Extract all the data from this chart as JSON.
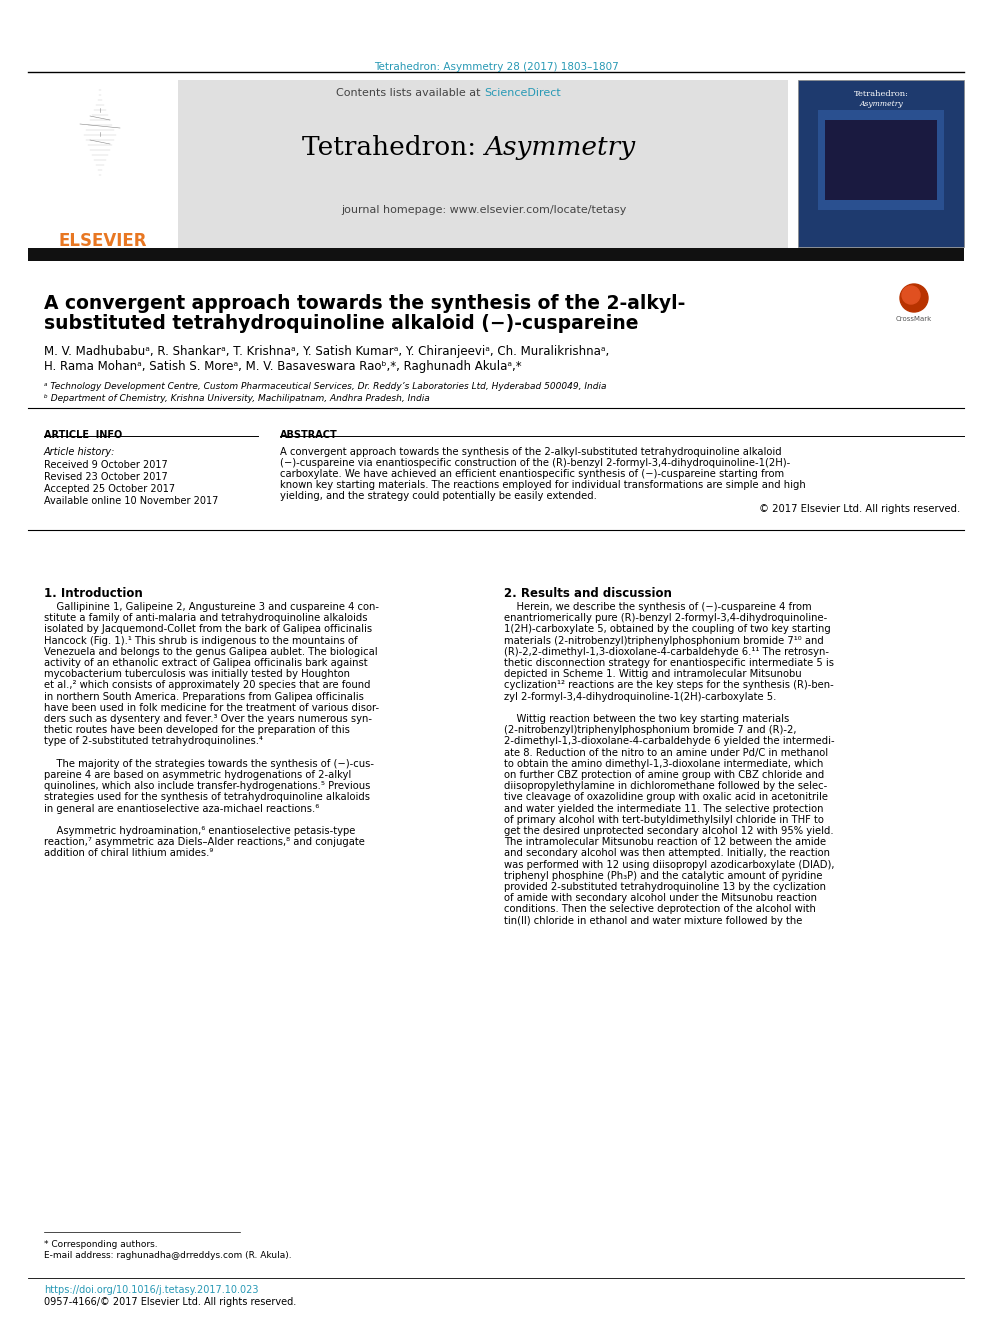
{
  "journal_header_text": "Tetrahedron: Asymmetry 28 (2017) 1803–1807",
  "journal_header_color": "#2899b5",
  "sciencedirect_color": "#2899b5",
  "elsevier_color": "#E87722",
  "doi_color": "#2899b5",
  "bg_color": "#ffffff",
  "header_bg": "#e0e0e0",
  "dark_bar_color": "#111111",
  "affiliation_a": "ᵃ Technology Development Centre, Custom Pharmaceutical Services, Dr. Reddy’s Laboratories Ltd, Hyderabad 500049, India",
  "affiliation_b": "ᵇ Department of Chemistry, Krishna University, Machilipatnam, Andhra Pradesh, India",
  "doi_text": "https://doi.org/10.1016/j.tetasy.2017.10.023",
  "issn_text": "0957-4166/© 2017 Elsevier Ltd. All rights reserved."
}
